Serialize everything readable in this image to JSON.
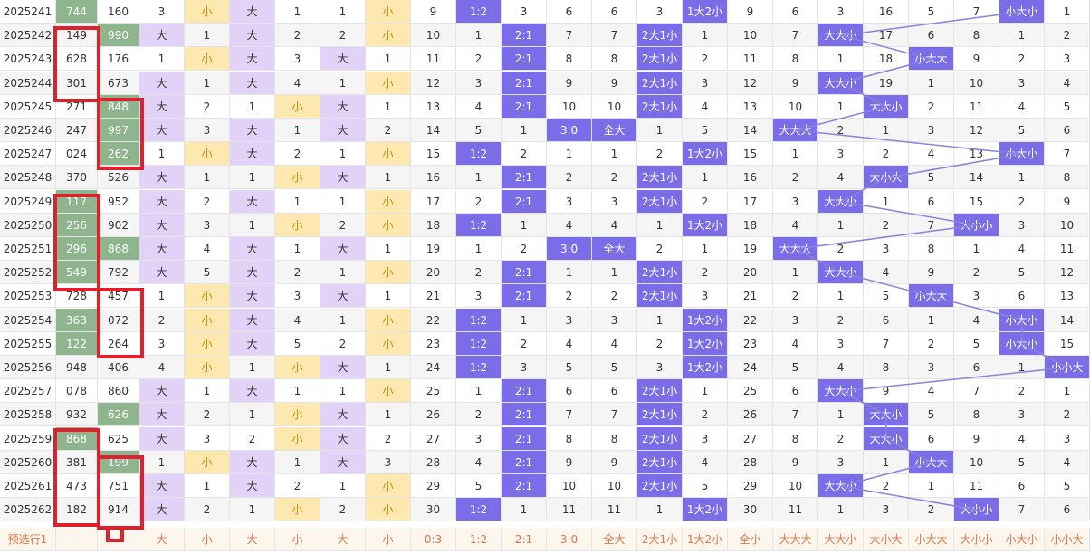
{
  "colors": {
    "text": "#333333",
    "footer_text": "#e0754a",
    "green": "#8fb58f",
    "yellow": "#fde9b0",
    "purple": "#e2d2f7",
    "blue": "#7b6de8",
    "zebra": "#f5f5f5",
    "footer_bg": "#fdf6ec",
    "red_box": "#e0202a",
    "line": "#8a82d8"
  },
  "rows": [
    [
      "2025241",
      "744",
      "160",
      "3",
      "小",
      "大",
      "1",
      "1",
      "小",
      "9",
      "1:2",
      "3",
      "6",
      "6",
      "3",
      "1大2小",
      "9",
      "6",
      "3",
      "16",
      "5",
      "7",
      "小大小",
      "1"
    ],
    [
      "2025242",
      "149",
      "990",
      "大",
      "1",
      "大",
      "2",
      "2",
      "小",
      "10",
      "1",
      "2:1",
      "7",
      "7",
      "2大1小",
      "1",
      "10",
      "7",
      "大大小",
      "17",
      "6",
      "8",
      "1",
      "2"
    ],
    [
      "2025243",
      "628",
      "176",
      "1",
      "小",
      "大",
      "3",
      "大",
      "1",
      "11",
      "2",
      "2:1",
      "8",
      "8",
      "2大1小",
      "2",
      "11",
      "8",
      "1",
      "18",
      "小大大",
      "9",
      "2",
      "3"
    ],
    [
      "2025244",
      "301",
      "673",
      "大",
      "1",
      "大",
      "4",
      "1",
      "小",
      "12",
      "3",
      "2:1",
      "9",
      "9",
      "2大1小",
      "3",
      "12",
      "9",
      "大大小",
      "19",
      "1",
      "10",
      "3",
      "4"
    ],
    [
      "2025245",
      "271",
      "848",
      "大",
      "2",
      "1",
      "小",
      "大",
      "1",
      "13",
      "4",
      "2:1",
      "10",
      "10",
      "2大1小",
      "4",
      "13",
      "10",
      "1",
      "大大小",
      "2",
      "11",
      "4",
      "5"
    ],
    [
      "2025246",
      "247",
      "997",
      "大",
      "3",
      "大",
      "1",
      "大",
      "2",
      "14",
      "5",
      "1",
      "3:0",
      "全大",
      "1",
      "5",
      "14",
      "大大大",
      "2",
      "1",
      "3",
      "12",
      "5",
      "6"
    ],
    [
      "2025247",
      "024",
      "262",
      "1",
      "小",
      "大",
      "2",
      "1",
      "小",
      "15",
      "1:2",
      "2",
      "1",
      "1",
      "2",
      "1大2小",
      "15",
      "1",
      "3",
      "2",
      "4",
      "13",
      "小大小",
      "7"
    ],
    [
      "2025248",
      "370",
      "526",
      "大",
      "1",
      "1",
      "小",
      "大",
      "1",
      "16",
      "1",
      "2:1",
      "2",
      "2",
      "2大1小",
      "1",
      "16",
      "2",
      "4",
      "大小大",
      "5",
      "14",
      "1",
      "8"
    ],
    [
      "2025249",
      "117",
      "952",
      "大",
      "2",
      "大",
      "1",
      "1",
      "小",
      "17",
      "2",
      "2:1",
      "3",
      "3",
      "2大1小",
      "2",
      "17",
      "3",
      "大大小",
      "1",
      "6",
      "15",
      "2",
      "9"
    ],
    [
      "2025250",
      "256",
      "902",
      "大",
      "3",
      "1",
      "小",
      "2",
      "小",
      "18",
      "1:2",
      "1",
      "4",
      "4",
      "1",
      "1大2小",
      "18",
      "4",
      "1",
      "2",
      "7",
      "大小小",
      "3",
      "10"
    ],
    [
      "2025251",
      "296",
      "868",
      "大",
      "4",
      "大",
      "1",
      "大",
      "1",
      "19",
      "1",
      "2",
      "3:0",
      "全大",
      "2",
      "1",
      "19",
      "大大大",
      "2",
      "3",
      "8",
      "1",
      "4",
      "11"
    ],
    [
      "2025252",
      "549",
      "792",
      "大",
      "5",
      "大",
      "2",
      "1",
      "小",
      "20",
      "2",
      "2:1",
      "1",
      "1",
      "2大1小",
      "2",
      "20",
      "1",
      "大大小",
      "4",
      "9",
      "2",
      "5",
      "12"
    ],
    [
      "2025253",
      "728",
      "457",
      "1",
      "小",
      "大",
      "3",
      "大",
      "1",
      "21",
      "3",
      "2:1",
      "2",
      "2",
      "2大1小",
      "3",
      "21",
      "2",
      "1",
      "5",
      "小大大",
      "3",
      "6",
      "13"
    ],
    [
      "2025254",
      "363",
      "072",
      "2",
      "小",
      "大",
      "4",
      "1",
      "小",
      "22",
      "1:2",
      "1",
      "3",
      "3",
      "1",
      "1大2小",
      "22",
      "3",
      "2",
      "6",
      "1",
      "4",
      "小大小",
      "14"
    ],
    [
      "2025255",
      "122",
      "264",
      "3",
      "小",
      "大",
      "5",
      "2",
      "小",
      "23",
      "1:2",
      "2",
      "4",
      "4",
      "2",
      "1大2小",
      "23",
      "4",
      "3",
      "7",
      "2",
      "5",
      "小大小",
      "15"
    ],
    [
      "2025256",
      "948",
      "406",
      "4",
      "小",
      "1",
      "小",
      "大",
      "1",
      "24",
      "1:2",
      "3",
      "5",
      "5",
      "3",
      "1大2小",
      "24",
      "5",
      "4",
      "8",
      "3",
      "6",
      "1",
      "小小大"
    ],
    [
      "2025257",
      "078",
      "860",
      "大",
      "1",
      "大",
      "1",
      "1",
      "小",
      "25",
      "1",
      "2:1",
      "6",
      "6",
      "2大1小",
      "1",
      "25",
      "6",
      "大大小",
      "9",
      "4",
      "7",
      "2",
      "1"
    ],
    [
      "2025258",
      "932",
      "626",
      "大",
      "2",
      "1",
      "小",
      "大",
      "1",
      "26",
      "2",
      "2:1",
      "7",
      "7",
      "2大1小",
      "2",
      "26",
      "7",
      "1",
      "大大小",
      "5",
      "8",
      "3",
      "2"
    ],
    [
      "2025259",
      "868",
      "625",
      "大",
      "3",
      "2",
      "小",
      "大",
      "2",
      "27",
      "3",
      "2:1",
      "8",
      "8",
      "2大1小",
      "3",
      "27",
      "8",
      "2",
      "大大小",
      "6",
      "9",
      "4",
      "3"
    ],
    [
      "2025260",
      "381",
      "199",
      "1",
      "小",
      "大",
      "1",
      "大",
      "3",
      "28",
      "4",
      "2:1",
      "9",
      "9",
      "2大1小",
      "4",
      "28",
      "9",
      "3",
      "1",
      "小大大",
      "10",
      "5",
      "4"
    ],
    [
      "2025261",
      "473",
      "751",
      "大",
      "1",
      "大",
      "2",
      "1",
      "小",
      "29",
      "5",
      "2:1",
      "10",
      "10",
      "2大1小",
      "5",
      "29",
      "10",
      "大大小",
      "2",
      "1",
      "11",
      "6",
      "5"
    ],
    [
      "2025262",
      "182",
      "914",
      "大",
      "2",
      "1",
      "小",
      "2",
      "小",
      "30",
      "1:2",
      "1",
      "11",
      "11",
      "1",
      "1大2小",
      "30",
      "11",
      "1",
      "3",
      "2",
      "大小小",
      "7",
      "6"
    ]
  ],
  "footer": [
    "预选行1",
    "-",
    "",
    "大",
    "小",
    "大",
    "小",
    "大",
    "小",
    "0:3",
    "1:2",
    "2:1",
    "3:0",
    "全大",
    "2大1小",
    "1大2小",
    "全小",
    "大大大",
    "大大小",
    "大小大",
    "小大大",
    "大小小",
    "小大小",
    "小小大"
  ]
}
